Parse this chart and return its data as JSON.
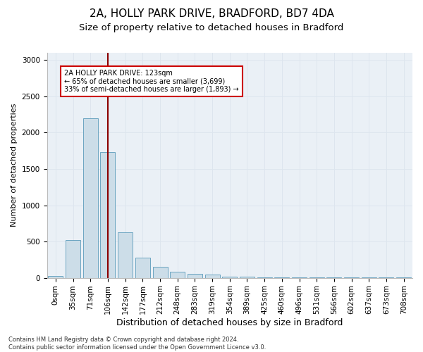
{
  "title_line1": "2A, HOLLY PARK DRIVE, BRADFORD, BD7 4DA",
  "title_line2": "Size of property relative to detached houses in Bradford",
  "xlabel": "Distribution of detached houses by size in Bradford",
  "ylabel": "Number of detached properties",
  "categories": [
    "0sqm",
    "35sqm",
    "71sqm",
    "106sqm",
    "142sqm",
    "177sqm",
    "212sqm",
    "248sqm",
    "283sqm",
    "319sqm",
    "354sqm",
    "389sqm",
    "425sqm",
    "460sqm",
    "496sqm",
    "531sqm",
    "566sqm",
    "602sqm",
    "637sqm",
    "673sqm",
    "708sqm"
  ],
  "bar_values": [
    25,
    520,
    2200,
    1730,
    630,
    275,
    150,
    85,
    50,
    40,
    20,
    15,
    10,
    5,
    5,
    5,
    3,
    2,
    2,
    2,
    2
  ],
  "bar_color": "#ccdde8",
  "bar_edge_color": "#5a9aba",
  "vline_x": 3,
  "vline_color": "#8b0000",
  "annotation_text": "2A HOLLY PARK DRIVE: 123sqm\n← 65% of detached houses are smaller (3,699)\n33% of semi-detached houses are larger (1,893) →",
  "annotation_box_color": "#cc0000",
  "ylim": [
    0,
    3100
  ],
  "yticks": [
    0,
    500,
    1000,
    1500,
    2000,
    2500,
    3000
  ],
  "footer_text": "Contains HM Land Registry data © Crown copyright and database right 2024.\nContains public sector information licensed under the Open Government Licence v3.0.",
  "bg_color": "#ffffff",
  "grid_color": "#dde5ee",
  "title_fontsize": 11,
  "subtitle_fontsize": 9.5,
  "ylabel_fontsize": 8,
  "xlabel_fontsize": 9,
  "tick_fontsize": 7.5,
  "annotation_fontsize": 7,
  "footer_fontsize": 6
}
